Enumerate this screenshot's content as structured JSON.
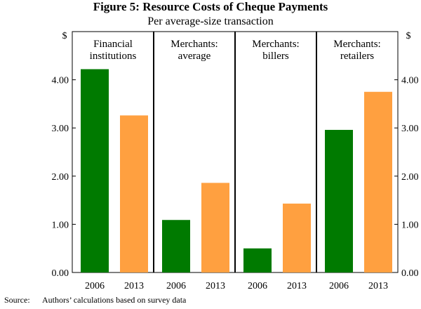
{
  "title": "Figure 5: Resource Costs of Cheque Payments",
  "subtitle": "Per average-size transaction",
  "source_label": "Source:",
  "source_text": "Authors’ calculations based on survey data",
  "chart_data": {
    "type": "bar",
    "title": "Figure 5: Resource Costs of Cheque Payments",
    "subtitle": "Per average-size transaction",
    "y_unit_left": "$",
    "y_unit_right": "$",
    "ylim": [
      0,
      5
    ],
    "yticks": [
      "0.00",
      "1.00",
      "2.00",
      "3.00",
      "4.00"
    ],
    "ytick_values": [
      0,
      1,
      2,
      3,
      4
    ],
    "colors": {
      "2006": "#007a00",
      "2013": "#ffa040"
    },
    "groups": [
      {
        "label": [
          "Financial",
          "institutions"
        ],
        "bars": [
          {
            "x": "2006",
            "value": 4.22
          },
          {
            "x": "2013",
            "value": 3.26
          }
        ]
      },
      {
        "label": [
          "Merchants:",
          "average"
        ],
        "bars": [
          {
            "x": "2006",
            "value": 1.09
          },
          {
            "x": "2013",
            "value": 1.86
          }
        ]
      },
      {
        "label": [
          "Merchants:",
          "billers"
        ],
        "bars": [
          {
            "x": "2006",
            "value": 0.5
          },
          {
            "x": "2013",
            "value": 1.43
          }
        ]
      },
      {
        "label": [
          "Merchants:",
          "retailers"
        ],
        "bars": [
          {
            "x": "2006",
            "value": 2.96
          },
          {
            "x": "2013",
            "value": 3.75
          }
        ]
      }
    ],
    "grid": false,
    "legend": "none"
  }
}
